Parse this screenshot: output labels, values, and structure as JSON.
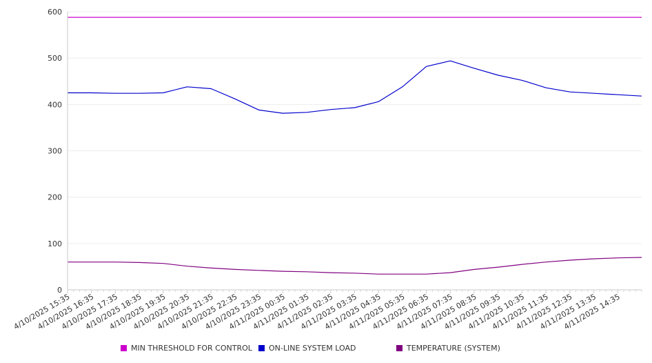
{
  "chart_data": {
    "type": "line",
    "ylim": [
      0,
      600
    ],
    "yticks": [
      0,
      100,
      200,
      300,
      400,
      500,
      600
    ],
    "xlim": [
      "4/10/2025 15:35",
      "4/11/2025 15:35"
    ],
    "x_tick_labels": [
      "4/10/2025 15:35",
      "4/10/2025 16:35",
      "4/10/2025 17:35",
      "4/10/2025 18:35",
      "4/10/2025 19:35",
      "4/10/2025 20:35",
      "4/10/2025 21:35",
      "4/10/2025 22:35",
      "4/10/2025 23:35",
      "4/11/2025 00:35",
      "4/11/2025 01:35",
      "4/11/2025 02:35",
      "4/11/2025 03:35",
      "4/11/2025 04:35",
      "4/11/2025 05:35",
      "4/11/2025 06:35",
      "4/11/2025 07:35",
      "4/11/2025 08:35",
      "4/11/2025 09:35",
      "4/11/2025 10:35",
      "4/11/2025 11:35",
      "4/11/2025 12:35",
      "4/11/2025 13:35",
      "4/11/2025 14:35"
    ],
    "grid": true,
    "legend_position": "bottom",
    "series": [
      {
        "name": "MIN THRESHOLD FOR CONTROL",
        "color": "#cc00cc",
        "x": [
          "4/10/2025 15:35",
          "4/11/2025 15:35"
        ],
        "values": [
          588,
          588
        ]
      },
      {
        "name": "ON-LINE SYSTEM LOAD",
        "color": "#0000cc",
        "x": [
          "4/10/2025 15:35",
          "4/10/2025 16:35",
          "4/10/2025 17:35",
          "4/10/2025 18:35",
          "4/10/2025 19:35",
          "4/10/2025 20:35",
          "4/10/2025 21:35",
          "4/10/2025 22:35",
          "4/10/2025 23:35",
          "4/11/2025 00:35",
          "4/11/2025 01:35",
          "4/11/2025 02:35",
          "4/11/2025 03:35",
          "4/11/2025 04:35",
          "4/11/2025 05:35",
          "4/11/2025 06:35",
          "4/11/2025 07:35",
          "4/11/2025 08:35",
          "4/11/2025 09:35",
          "4/11/2025 10:35",
          "4/11/2025 11:35",
          "4/11/2025 12:35",
          "4/11/2025 13:35",
          "4/11/2025 14:35",
          "4/11/2025 15:35"
        ],
        "values": [
          425,
          425,
          424,
          424,
          425,
          438,
          434,
          412,
          388,
          381,
          383,
          389,
          393,
          406,
          438,
          482,
          494,
          478,
          463,
          452,
          436,
          427,
          424,
          421,
          418
        ]
      },
      {
        "name": "TEMPERATURE (SYSTEM)",
        "color": "#800080",
        "x": [
          "4/10/2025 15:35",
          "4/10/2025 16:35",
          "4/10/2025 17:35",
          "4/10/2025 18:35",
          "4/10/2025 19:35",
          "4/10/2025 20:35",
          "4/10/2025 21:35",
          "4/10/2025 22:35",
          "4/10/2025 23:35",
          "4/11/2025 00:35",
          "4/11/2025 01:35",
          "4/11/2025 02:35",
          "4/11/2025 03:35",
          "4/11/2025 04:35",
          "4/11/2025 05:35",
          "4/11/2025 06:35",
          "4/11/2025 07:35",
          "4/11/2025 08:35",
          "4/11/2025 09:35",
          "4/11/2025 10:35",
          "4/11/2025 11:35",
          "4/11/2025 12:35",
          "4/11/2025 13:35",
          "4/11/2025 14:35",
          "4/11/2025 15:35"
        ],
        "values": [
          60,
          60,
          60,
          59,
          57,
          51,
          47,
          44,
          42,
          40,
          39,
          37,
          36,
          34,
          34,
          34,
          37,
          44,
          49,
          55,
          60,
          64,
          67,
          69,
          70
        ]
      }
    ]
  }
}
